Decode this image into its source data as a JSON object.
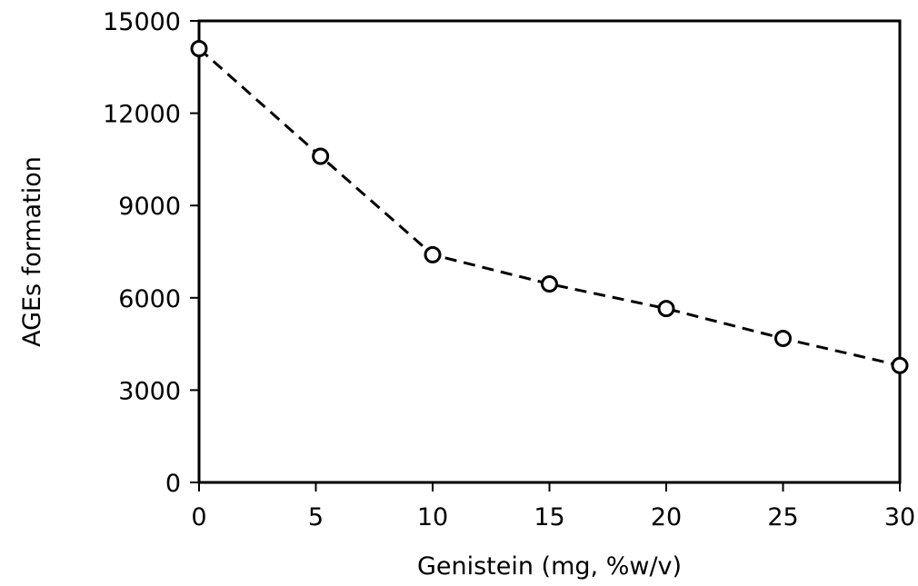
{
  "chart_data": {
    "type": "line",
    "title": "",
    "xlabel": "Genistein (mg, %w/v)",
    "ylabel": "AGEs  formation",
    "xlim": [
      0,
      30
    ],
    "ylim": [
      0,
      15000
    ],
    "x_ticks": [
      0,
      5,
      10,
      15,
      20,
      25,
      30
    ],
    "y_ticks": [
      0,
      3000,
      6000,
      9000,
      12000,
      15000
    ],
    "grid": false,
    "legend": "none",
    "series": [
      {
        "line_style": "dashed",
        "marker": "open-circle",
        "color": "#000000",
        "x": [
          0,
          5.2,
          10,
          15,
          20,
          25,
          30
        ],
        "y": [
          14100,
          10600,
          7400,
          6450,
          5650,
          4680,
          3800
        ]
      }
    ]
  }
}
